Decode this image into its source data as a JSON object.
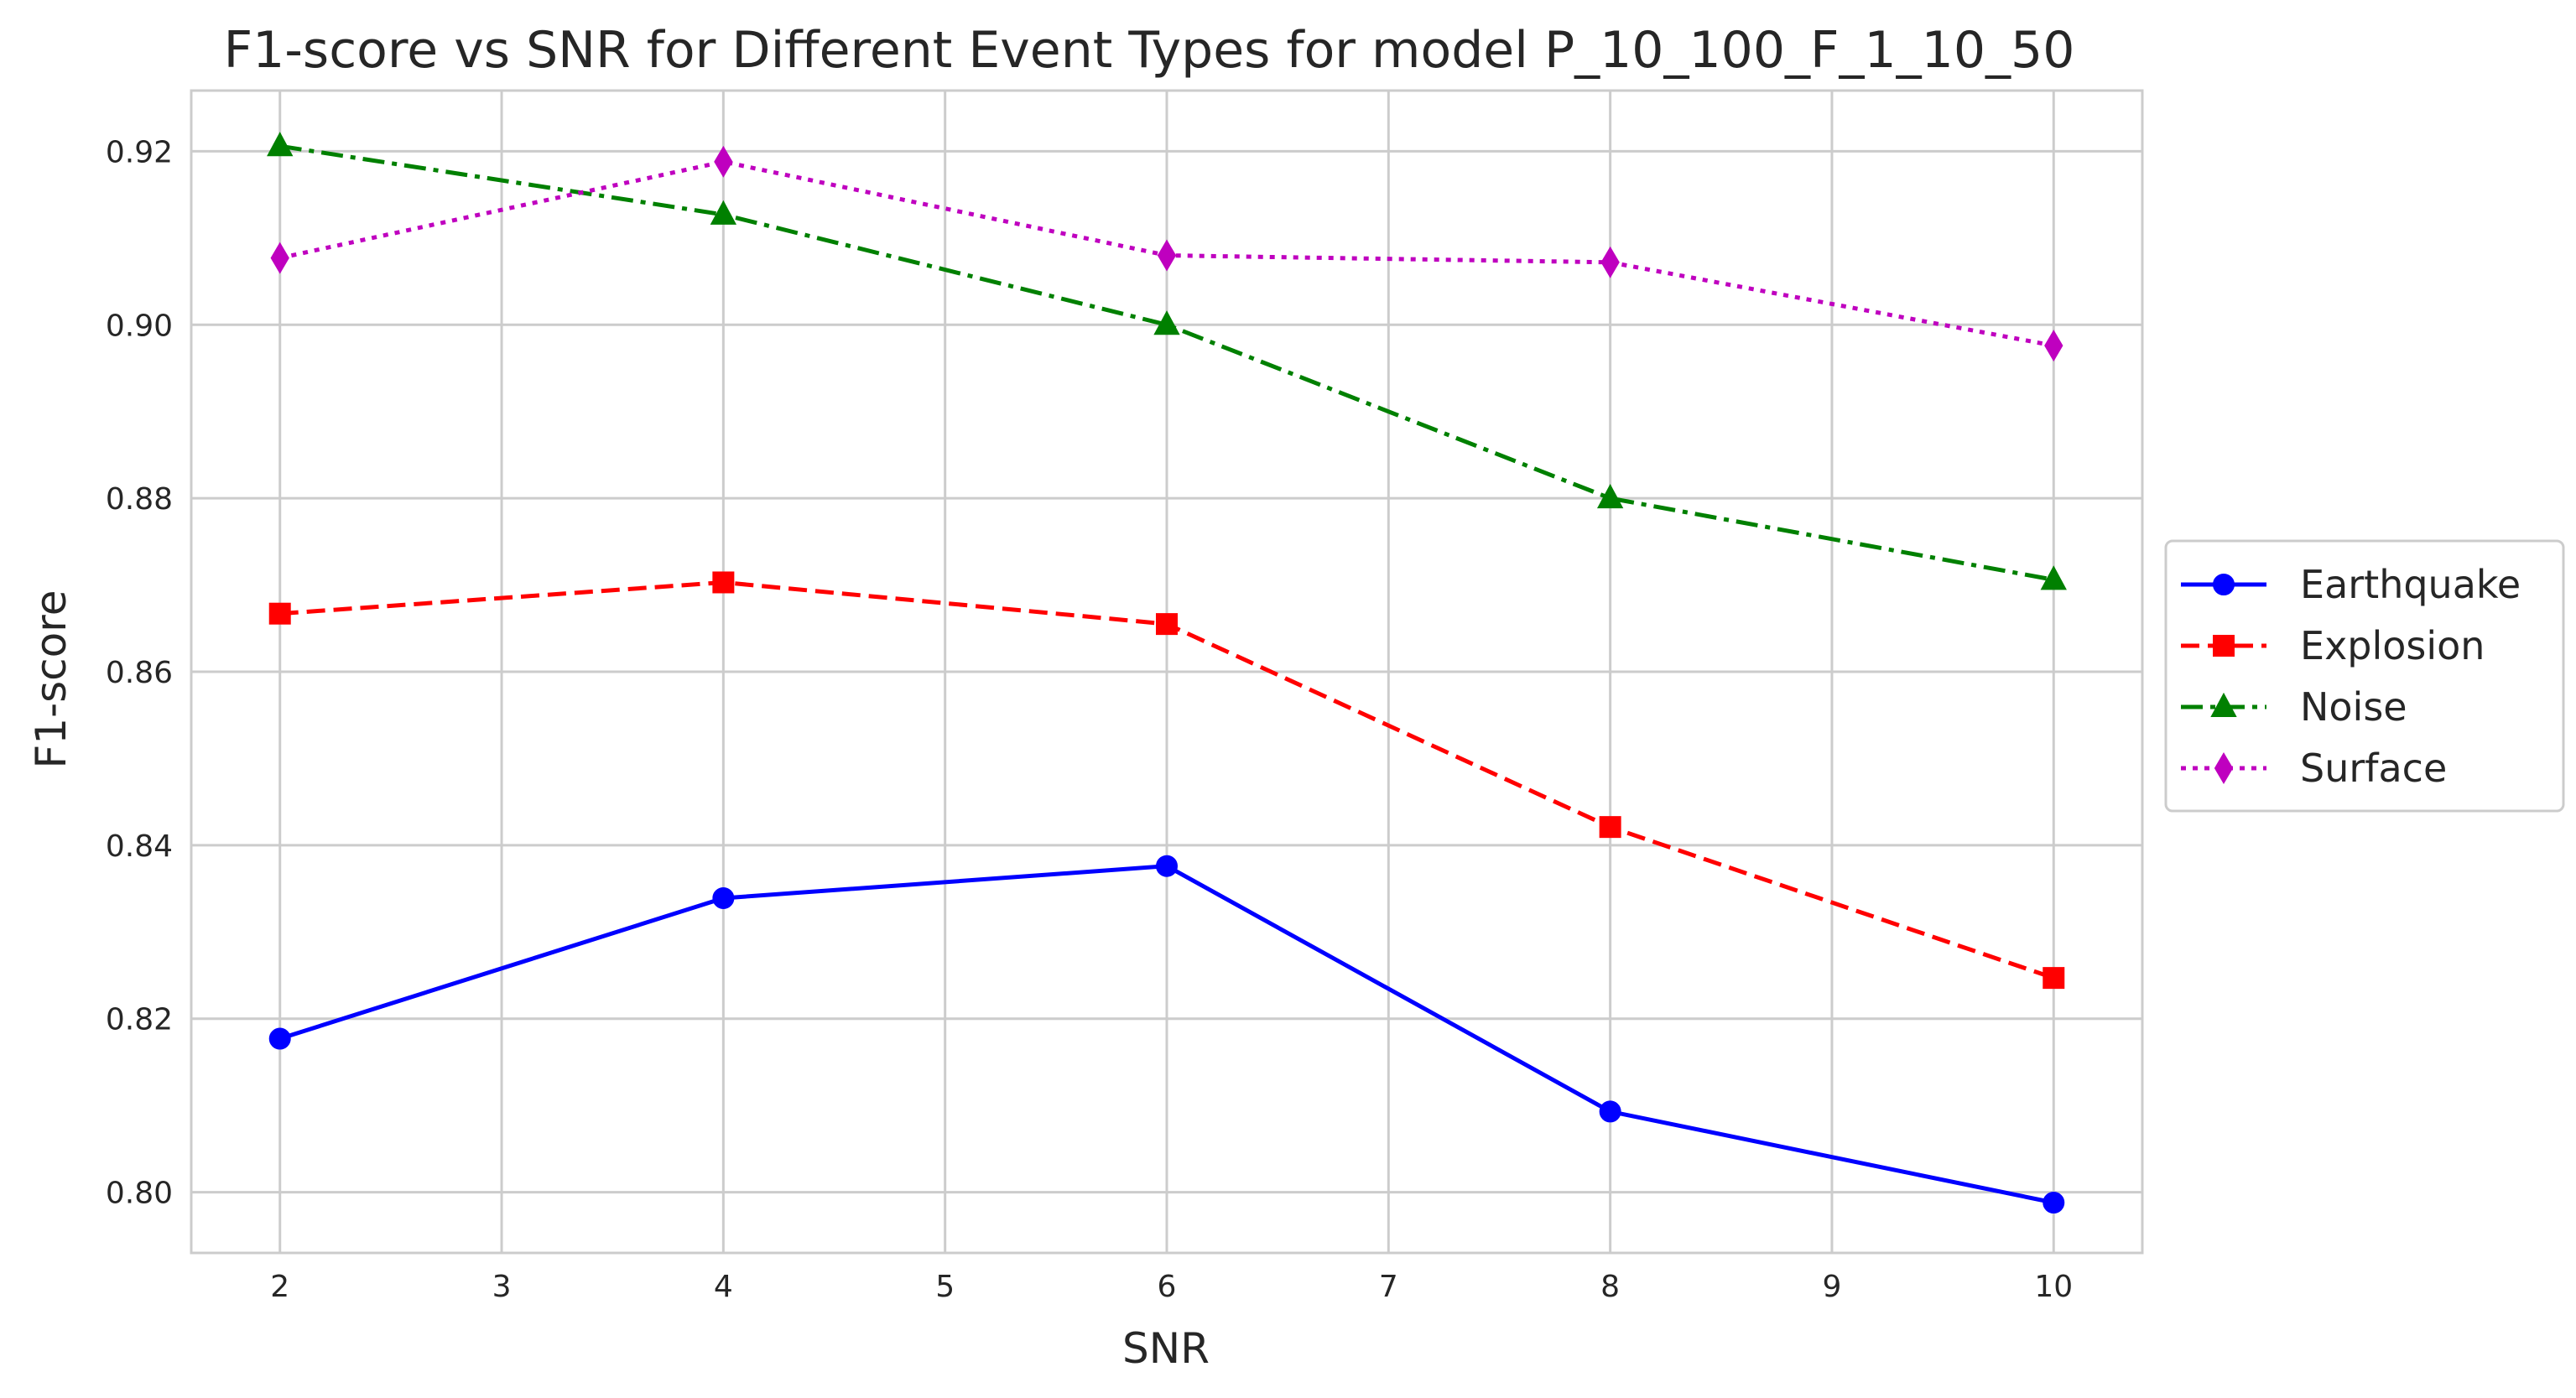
{
  "chart_data": {
    "type": "line",
    "title": "F1-score vs SNR for Different Event Types for model P_10_100_F_1_10_50",
    "xlabel": "SNR",
    "ylabel": "F1-score",
    "x": [
      2,
      4,
      6,
      8,
      10
    ],
    "xlim": [
      1.6,
      10.4
    ],
    "ylim": [
      0.793,
      0.927
    ],
    "xticks": [
      2,
      3,
      4,
      5,
      6,
      7,
      8,
      9,
      10
    ],
    "yticks": [
      0.8,
      0.82,
      0.84,
      0.86,
      0.88,
      0.9,
      0.92
    ],
    "ytick_labels": [
      "0.80",
      "0.82",
      "0.84",
      "0.86",
      "0.88",
      "0.90",
      "0.92"
    ],
    "grid": true,
    "legend_position": "center-right outside",
    "series": [
      {
        "name": "Earthquake",
        "values": [
          0.8177,
          0.8339,
          0.8376,
          0.8093,
          0.7988
        ],
        "color": "#0000ff",
        "marker": "circle",
        "linestyle": "solid"
      },
      {
        "name": "Explosion",
        "values": [
          0.8667,
          0.8703,
          0.8655,
          0.8421,
          0.8247
        ],
        "color": "#ff0000",
        "marker": "square",
        "linestyle": "dashed"
      },
      {
        "name": "Noise",
        "values": [
          0.9206,
          0.9127,
          0.9,
          0.88,
          0.8706
        ],
        "color": "#008000",
        "marker": "triangle",
        "linestyle": "dashdot"
      },
      {
        "name": "Surface",
        "values": [
          0.9077,
          0.9188,
          0.908,
          0.9072,
          0.8976
        ],
        "color": "#bf00bf",
        "marker": "diamond",
        "linestyle": "dotted"
      }
    ]
  }
}
